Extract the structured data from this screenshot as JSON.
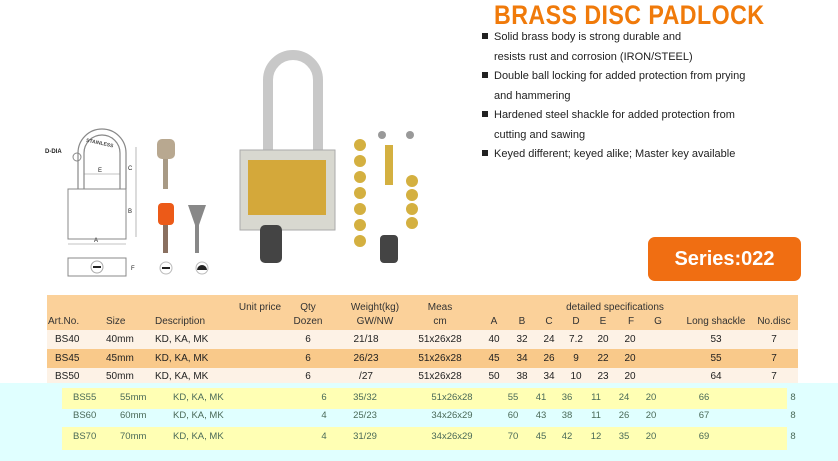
{
  "title": "BRASS DISC PADLOCK",
  "features": [
    {
      "line1": "Solid brass body is strong durable and",
      "line2": "resists rust and corrosion  (IRON/STEEL)"
    },
    {
      "line1": "Double ball locking for added protection from prying",
      "line2": "and hammering"
    },
    {
      "line1": "Hardened steel shackle for added protection from",
      "line2": "cutting and sawing"
    },
    {
      "line1": "Keyed different; keyed alike; Master key available",
      "line2": ""
    }
  ],
  "series_badge": "Series:022",
  "diagram_labels": {
    "d_dia": "D-DIA",
    "stainless": "STAINLESS",
    "a": "A",
    "b": "B",
    "c": "C",
    "e": "E",
    "f": "F"
  },
  "colors": {
    "accent": "#f07a0a",
    "header_band": "#fbd19a",
    "row_light": "#fdf2e6",
    "row_dark": "#f9c98a",
    "overlay_cyan": "#e0ffff",
    "overlay_yellow": "#ffffb4"
  },
  "table": {
    "headers": {
      "art": "Art.No.",
      "size": "Size",
      "desc": "Description",
      "price": "Unit price",
      "qty1": "Qty",
      "qty2": "Dozen",
      "wt1": "Weight(kg)",
      "wt2": "GW/NW",
      "meas1": "Meas",
      "meas2": "cm",
      "specs": "detailed specifications",
      "a": "A",
      "b": "B",
      "c": "C",
      "d": "D",
      "e": "E",
      "f": "F",
      "g": "G",
      "long": "Long shackle",
      "disc": "No.disc"
    },
    "rows": [
      {
        "art": "BS40",
        "size": "40mm",
        "desc": "KD, KA, MK",
        "price": "",
        "qty": "6",
        "weight": "21/18",
        "meas": "51x26x28",
        "a": "40",
        "b": "32",
        "c": "24",
        "d": "7.2",
        "e": "20",
        "f": "20",
        "g": "",
        "long": "53",
        "disc": "7"
      },
      {
        "art": "BS45",
        "size": "45mm",
        "desc": "KD, KA, MK",
        "price": "",
        "qty": "6",
        "weight": "26/23",
        "meas": "51x26x28",
        "a": "45",
        "b": "34",
        "c": "26",
        "d": "9",
        "e": "22",
        "f": "20",
        "g": "",
        "long": "55",
        "disc": "7"
      },
      {
        "art": "BS50",
        "size": "50mm",
        "desc": "KD, KA, MK",
        "price": "",
        "qty": "6",
        "weight": "/27",
        "meas": "51x26x28",
        "a": "50",
        "b": "38",
        "c": "34",
        "d": "10",
        "e": "23",
        "f": "20",
        "g": "",
        "long": "64",
        "disc": "7"
      },
      {
        "art": "BS55",
        "size": "55mm",
        "desc": "KD, KA, MK",
        "price": "",
        "qty": "6",
        "weight": "35/32",
        "meas": "51x26x28",
        "a": "55",
        "b": "41",
        "c": "36",
        "d": "11",
        "e": "24",
        "f": "20",
        "g": "",
        "long": "66",
        "disc": "8"
      },
      {
        "art": "BS60",
        "size": "60mm",
        "desc": "KD, KA, MK",
        "price": "",
        "qty": "4",
        "weight": "25/23",
        "meas": "34x26x29",
        "a": "60",
        "b": "43",
        "c": "38",
        "d": "11",
        "e": "26",
        "f": "20",
        "g": "",
        "long": "67",
        "disc": "8"
      },
      {
        "art": "BS70",
        "size": "70mm",
        "desc": "KD, KA, MK",
        "price": "",
        "qty": "4",
        "weight": "31/29",
        "meas": "34x26x29",
        "a": "70",
        "b": "45",
        "c": "42",
        "d": "12",
        "e": "35",
        "f": "20",
        "g": "",
        "long": "69",
        "disc": "8"
      }
    ]
  }
}
